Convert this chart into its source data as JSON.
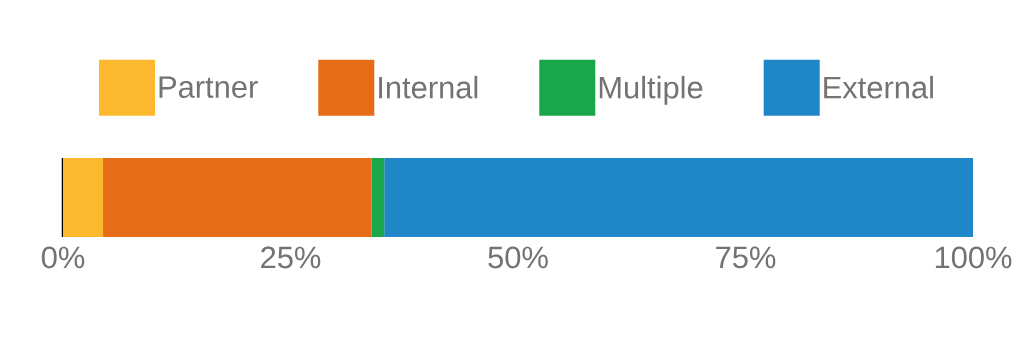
{
  "chart_data": {
    "type": "bar",
    "orientation": "horizontal",
    "stacked": true,
    "categories": [
      null
    ],
    "series": [
      {
        "name": "Partner",
        "color": "#fbb92f",
        "values": [
          4.4
        ]
      },
      {
        "name": "Internal",
        "color": "#e66c17",
        "values": [
          29.5
        ]
      },
      {
        "name": "Multiple",
        "color": "#1aa64a",
        "values": [
          1.4
        ]
      },
      {
        "name": "External",
        "color": "#1f87c8",
        "values": [
          64.7
        ]
      }
    ],
    "xlim": [
      0,
      100
    ],
    "xticks": [
      {
        "value": 0,
        "label": "0%"
      },
      {
        "value": 25,
        "label": "25%"
      },
      {
        "value": 50,
        "label": "50%"
      },
      {
        "value": 75,
        "label": "75%"
      },
      {
        "value": 100,
        "label": "100%"
      }
    ],
    "legend": "top"
  }
}
